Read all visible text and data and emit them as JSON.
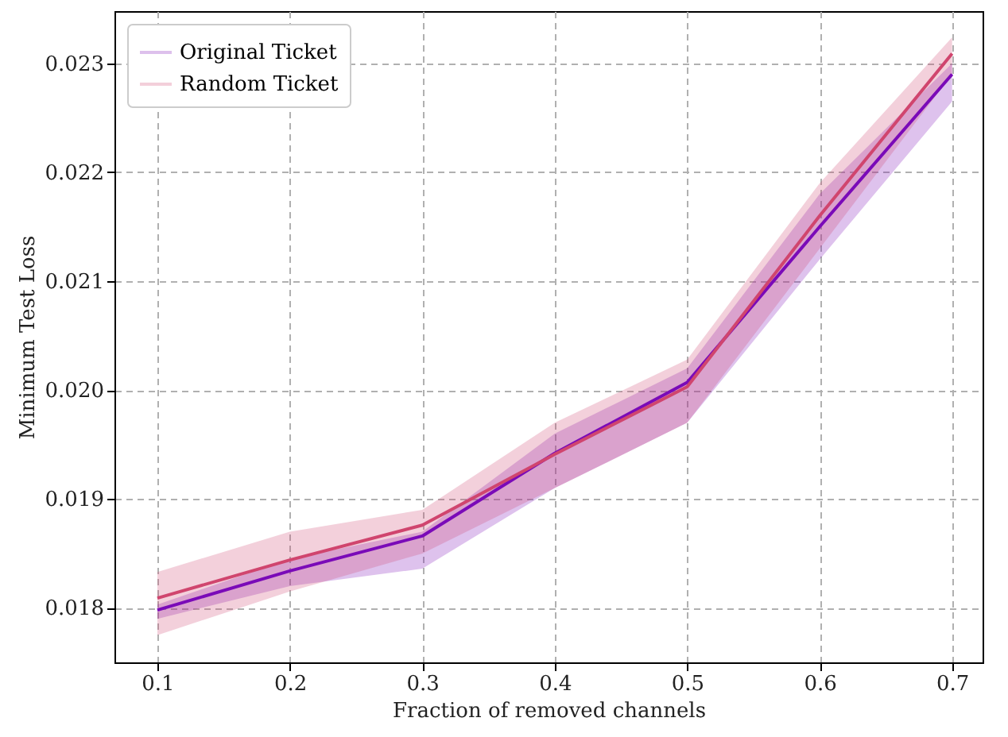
{
  "chart_data": {
    "type": "line",
    "xlabel": "Fraction of removed channels",
    "ylabel": "Minimum Test Loss",
    "x": [
      0.1,
      0.2,
      0.3,
      0.4,
      0.5,
      0.6,
      0.7
    ],
    "series": [
      {
        "name": "Original Ticket",
        "color": "#7a0ab8",
        "values": [
          0.01798,
          0.01834,
          0.01866,
          0.01942,
          0.02007,
          0.0215,
          0.0229
        ],
        "lower": [
          0.0179,
          0.0182,
          0.01836,
          0.0191,
          0.0197,
          0.0212,
          0.02265
        ],
        "upper": [
          0.01803,
          0.01845,
          0.0187,
          0.0196,
          0.0202,
          0.0218,
          0.023
        ]
      },
      {
        "name": "Random Ticket",
        "color": "#d0456e",
        "values": [
          0.01809,
          0.01844,
          0.01876,
          0.01941,
          0.02003,
          0.0216,
          0.02309
        ],
        "lower": [
          0.01775,
          0.01815,
          0.0185,
          0.0191,
          0.0197,
          0.0213,
          0.0229
        ],
        "upper": [
          0.01833,
          0.0187,
          0.0189,
          0.0197,
          0.02028,
          0.0219,
          0.02324
        ]
      }
    ],
    "xlim": [
      0.0676,
      0.723
    ],
    "ylim": [
      0.0175,
      0.02348
    ],
    "xticks": [
      0.1,
      0.2,
      0.3,
      0.4,
      0.5,
      0.6,
      0.7
    ],
    "yticks": [
      0.018,
      0.019,
      {
        "value": 0.02,
        "label": "0.020"
      },
      0.021,
      0.022,
      0.023
    ],
    "grid": true,
    "legend": "top left",
    "line_style": "solid",
    "marker": "none"
  }
}
